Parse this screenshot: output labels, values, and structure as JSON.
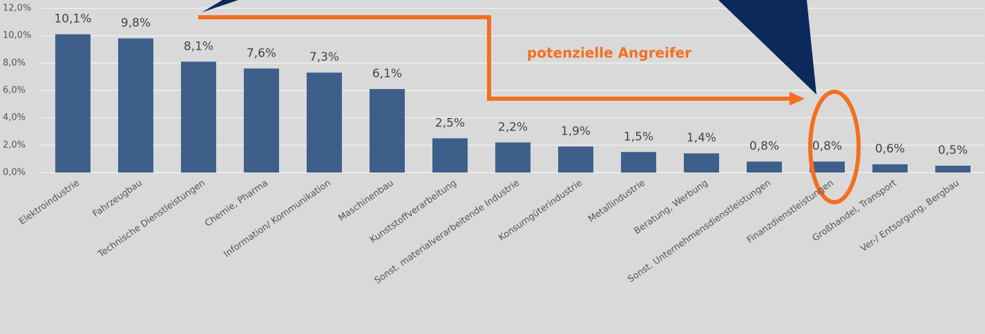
{
  "chart_data": {
    "type": "bar",
    "categories": [
      "Elektroindustrie",
      "Fahrzeugbau",
      "Technische Dienstleistungen",
      "Chemie, Pharma",
      "Information/ Kommunikation",
      "Maschinenbau",
      "Kunststoffverarbeitung",
      "Sonst. materialverarbeitende Industrie",
      "Konsumgüterindustrie",
      "Metallindustrie",
      "Beratung, Werbung",
      "Sonst. Unternehmensdienstleistungen",
      "Finanzdienstleistungen",
      "Großhandel, Transport",
      "Ver-/ Entsorgung, Bergbau"
    ],
    "values": [
      10.1,
      9.8,
      8.1,
      7.6,
      7.3,
      6.1,
      2.5,
      2.2,
      1.9,
      1.5,
      1.4,
      0.8,
      0.8,
      0.6,
      0.5
    ],
    "value_labels": [
      "10,1%",
      "9,8%",
      "8,1%",
      "7,6%",
      "7,3%",
      "6,1%",
      "2,5%",
      "2,2%",
      "1,9%",
      "1,5%",
      "1,4%",
      "0,8%",
      "0,8%",
      "0,6%",
      "0,5%"
    ],
    "color": "#3f5f8b",
    "ylim": [
      0,
      12
    ],
    "yticks": [
      {
        "value": 0,
        "label": "0,0%"
      },
      {
        "value": 2,
        "label": "2,0%"
      },
      {
        "value": 4,
        "label": "4,0%"
      },
      {
        "value": 6,
        "label": "6,0%"
      },
      {
        "value": 8,
        "label": "8,0%"
      },
      {
        "value": 10,
        "label": "10,0%"
      },
      {
        "value": 12,
        "label": "12,0%"
      }
    ],
    "grid": true,
    "annotations": [
      "potenzielle Angreifer"
    ]
  }
}
